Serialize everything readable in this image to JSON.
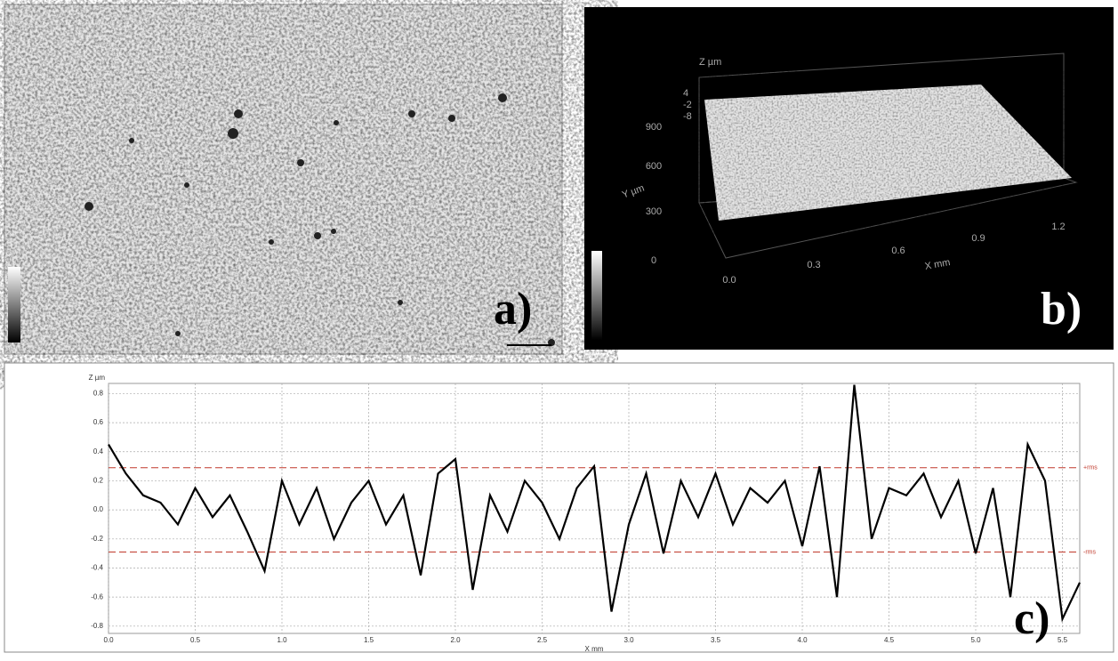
{
  "panels": {
    "a": {
      "label": "a)"
    },
    "b": {
      "label": "b)",
      "z_axis_title": "Z µm",
      "y_axis_title": "Y µm",
      "x_axis_title": "X mm",
      "z_ticks": [
        "4",
        "-2",
        "-8"
      ],
      "y_ticks": [
        "0",
        "300",
        "600",
        "900"
      ],
      "x_ticks": [
        "0.0",
        "0.3",
        "0.6",
        "0.9",
        "1.2"
      ]
    }
  },
  "chart_data": {
    "type": "line",
    "panel_label": "c)",
    "x_label": "X mm",
    "y_label": "Z µm",
    "color": "#000000",
    "grid": true,
    "x": [
      0.0,
      0.1,
      0.2,
      0.3,
      0.4,
      0.5,
      0.6,
      0.7,
      0.8,
      0.9,
      1.0,
      1.1,
      1.2,
      1.3,
      1.4,
      1.5,
      1.6,
      1.7,
      1.8,
      1.9,
      2.0,
      2.1,
      2.2,
      2.3,
      2.4,
      2.5,
      2.6,
      2.7,
      2.8,
      2.9,
      3.0,
      3.1,
      3.2,
      3.3,
      3.4,
      3.5,
      3.6,
      3.7,
      3.8,
      3.9,
      4.0,
      4.1,
      4.2,
      4.3,
      4.4,
      4.5,
      4.6,
      4.7,
      4.8,
      4.9,
      5.0,
      5.1,
      5.2,
      5.3,
      5.4,
      5.5,
      5.6
    ],
    "values": [
      0.45,
      0.25,
      0.1,
      0.05,
      -0.1,
      0.15,
      -0.05,
      0.1,
      -0.15,
      -0.42,
      0.2,
      -0.1,
      0.15,
      -0.2,
      0.05,
      0.2,
      -0.1,
      0.1,
      -0.45,
      0.25,
      0.35,
      -0.55,
      0.1,
      -0.15,
      0.2,
      0.05,
      -0.2,
      0.15,
      0.3,
      -0.7,
      -0.1,
      0.25,
      -0.3,
      0.2,
      -0.05,
      0.25,
      -0.1,
      0.15,
      0.05,
      0.2,
      -0.25,
      0.3,
      -0.6,
      0.86,
      -0.2,
      0.15,
      0.1,
      0.25,
      -0.05,
      0.2,
      -0.3,
      0.15,
      -0.6,
      0.45,
      0.2,
      -0.75,
      -0.5
    ],
    "rms_lines": [
      {
        "value": 0.29,
        "label": "+rms"
      },
      {
        "value": -0.29,
        "label": "-rms"
      }
    ],
    "rms_color": "#c0392b",
    "xlim": [
      0,
      5.6
    ],
    "ylim": [
      -0.85,
      0.87
    ],
    "xticks": [
      {
        "value": 0,
        "label": "0.0"
      },
      {
        "value": 0.5,
        "label": "0.5"
      },
      {
        "value": 1,
        "label": "1.0"
      },
      {
        "value": 1.5,
        "label": "1.5"
      },
      {
        "value": 2,
        "label": "2.0"
      },
      {
        "value": 2.5,
        "label": "2.5"
      },
      {
        "value": 3,
        "label": "3.0"
      },
      {
        "value": 3.5,
        "label": "3.5"
      },
      {
        "value": 4,
        "label": "4.0"
      },
      {
        "value": 4.5,
        "label": "4.5"
      },
      {
        "value": 5,
        "label": "5.0"
      },
      {
        "value": 5.5,
        "label": "5.5"
      }
    ],
    "yticks": [
      -0.8,
      -0.6,
      -0.4,
      -0.2,
      {
        "value": 0,
        "label": "0.0"
      },
      0.2,
      0.4,
      0.6,
      0.8
    ]
  }
}
